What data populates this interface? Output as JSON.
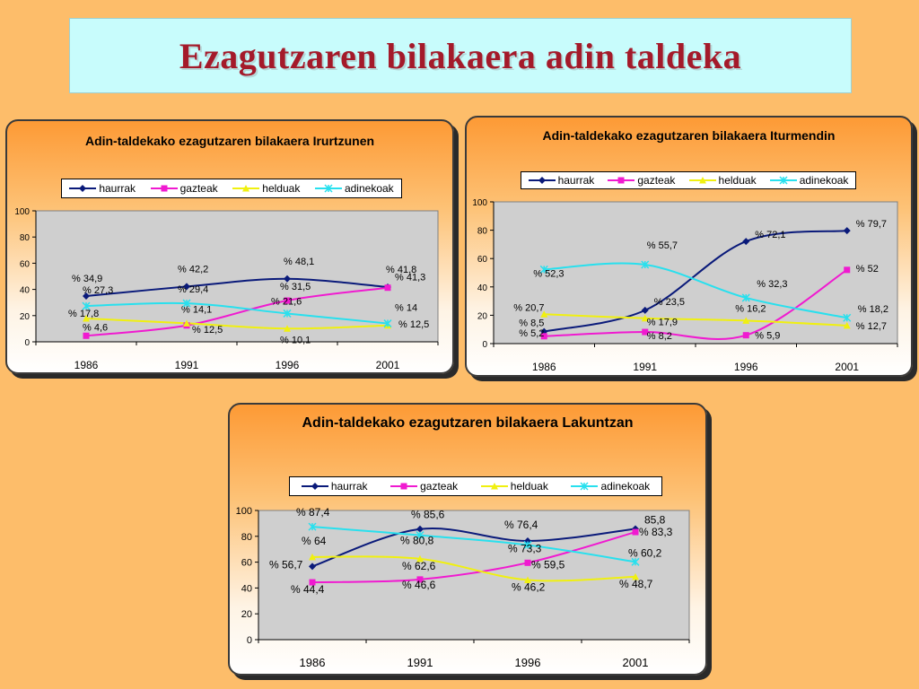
{
  "page_title": "Ezagutzaren bilakaera adin taldeka",
  "colors": {
    "haurrak": "#0a1a7a",
    "gazteak": "#f01ad0",
    "helduak": "#f0f010",
    "adinekoak": "#28e0ee"
  },
  "chart_data": [
    {
      "type": "line",
      "title": "Adin-taldekako ezagutzaren bilakaera Irurtzunen",
      "categories": [
        "1986",
        "1991",
        "1996",
        "2001"
      ],
      "ylim": [
        0,
        100
      ],
      "yticks": [
        0,
        20,
        40,
        60,
        80,
        100
      ],
      "legend": "top",
      "series": [
        {
          "name": "haurrak",
          "values": [
            34.9,
            42.2,
            48.1,
            41.8
          ],
          "labels": [
            "% 34,9",
            "% 42,2",
            "% 48,1",
            "% 41,8"
          ]
        },
        {
          "name": "gazteak",
          "values": [
            4.6,
            12.5,
            31.5,
            41.3
          ],
          "labels": [
            "% 4,6",
            "% 12,5",
            "% 31,5",
            "% 41,3"
          ]
        },
        {
          "name": "helduak",
          "values": [
            17.8,
            14.1,
            10.1,
            12.5
          ],
          "labels": [
            "% 17,8",
            "% 14,1",
            "% 10,1",
            "% 12,5"
          ]
        },
        {
          "name": "adinekoak",
          "values": [
            27.3,
            29.4,
            21.6,
            14
          ],
          "labels": [
            "% 27,3",
            "% 29,4",
            "% 21,6",
            "% 14"
          ]
        }
      ]
    },
    {
      "type": "line",
      "title": "Adin-taldekako ezagutzaren bilakaera Iturmendin",
      "categories": [
        "1986",
        "1991",
        "1996",
        "2001"
      ],
      "ylim": [
        0,
        100
      ],
      "yticks": [
        0,
        20,
        40,
        60,
        80,
        100
      ],
      "legend": "top",
      "series": [
        {
          "name": "haurrak",
          "values": [
            8.5,
            23.5,
            72.1,
            79.7
          ],
          "labels": [
            "% 8,5",
            "% 23,5",
            "% 72,1",
            "% 79,7"
          ]
        },
        {
          "name": "gazteak",
          "values": [
            5.2,
            8.2,
            5.9,
            52
          ],
          "labels": [
            "% 5,2",
            "% 8,2",
            "% 5,9",
            "% 52"
          ]
        },
        {
          "name": "helduak",
          "values": [
            20.7,
            17.9,
            16.2,
            12.7
          ],
          "labels": [
            "% 20,7",
            "% 17,9",
            "% 16,2",
            "% 12,7"
          ]
        },
        {
          "name": "adinekoak",
          "values": [
            52.3,
            55.7,
            32.3,
            18.2
          ],
          "labels": [
            "% 52,3",
            "% 55,7",
            "% 32,3",
            "% 18,2"
          ]
        }
      ]
    },
    {
      "type": "line",
      "title": "Adin-taldekako ezagutzaren bilakaera Lakuntzan",
      "categories": [
        "1986",
        "1991",
        "1996",
        "2001"
      ],
      "ylim": [
        0,
        100
      ],
      "yticks": [
        0,
        20,
        40,
        60,
        80,
        100
      ],
      "legend": "top",
      "series": [
        {
          "name": "haurrak",
          "values": [
            56.7,
            85.6,
            76.4,
            85.8
          ],
          "labels": [
            "% 56,7",
            "% 85,6",
            "% 76,4",
            "85,8"
          ]
        },
        {
          "name": "gazteak",
          "values": [
            44.4,
            46.6,
            59.5,
            83.3
          ],
          "labels": [
            "% 44,4",
            "% 46,6",
            "% 59,5",
            "% 83,3"
          ]
        },
        {
          "name": "helduak",
          "values": [
            64,
            62.6,
            46.2,
            48.7
          ],
          "labels": [
            "% 64",
            "% 62,6",
            "% 46,2",
            "% 48,7"
          ]
        },
        {
          "name": "adinekoak",
          "values": [
            87.4,
            80.8,
            73.3,
            60.2
          ],
          "labels": [
            "% 87,4",
            "% 80,8",
            "% 73,3",
            "% 60,2"
          ]
        }
      ]
    }
  ]
}
